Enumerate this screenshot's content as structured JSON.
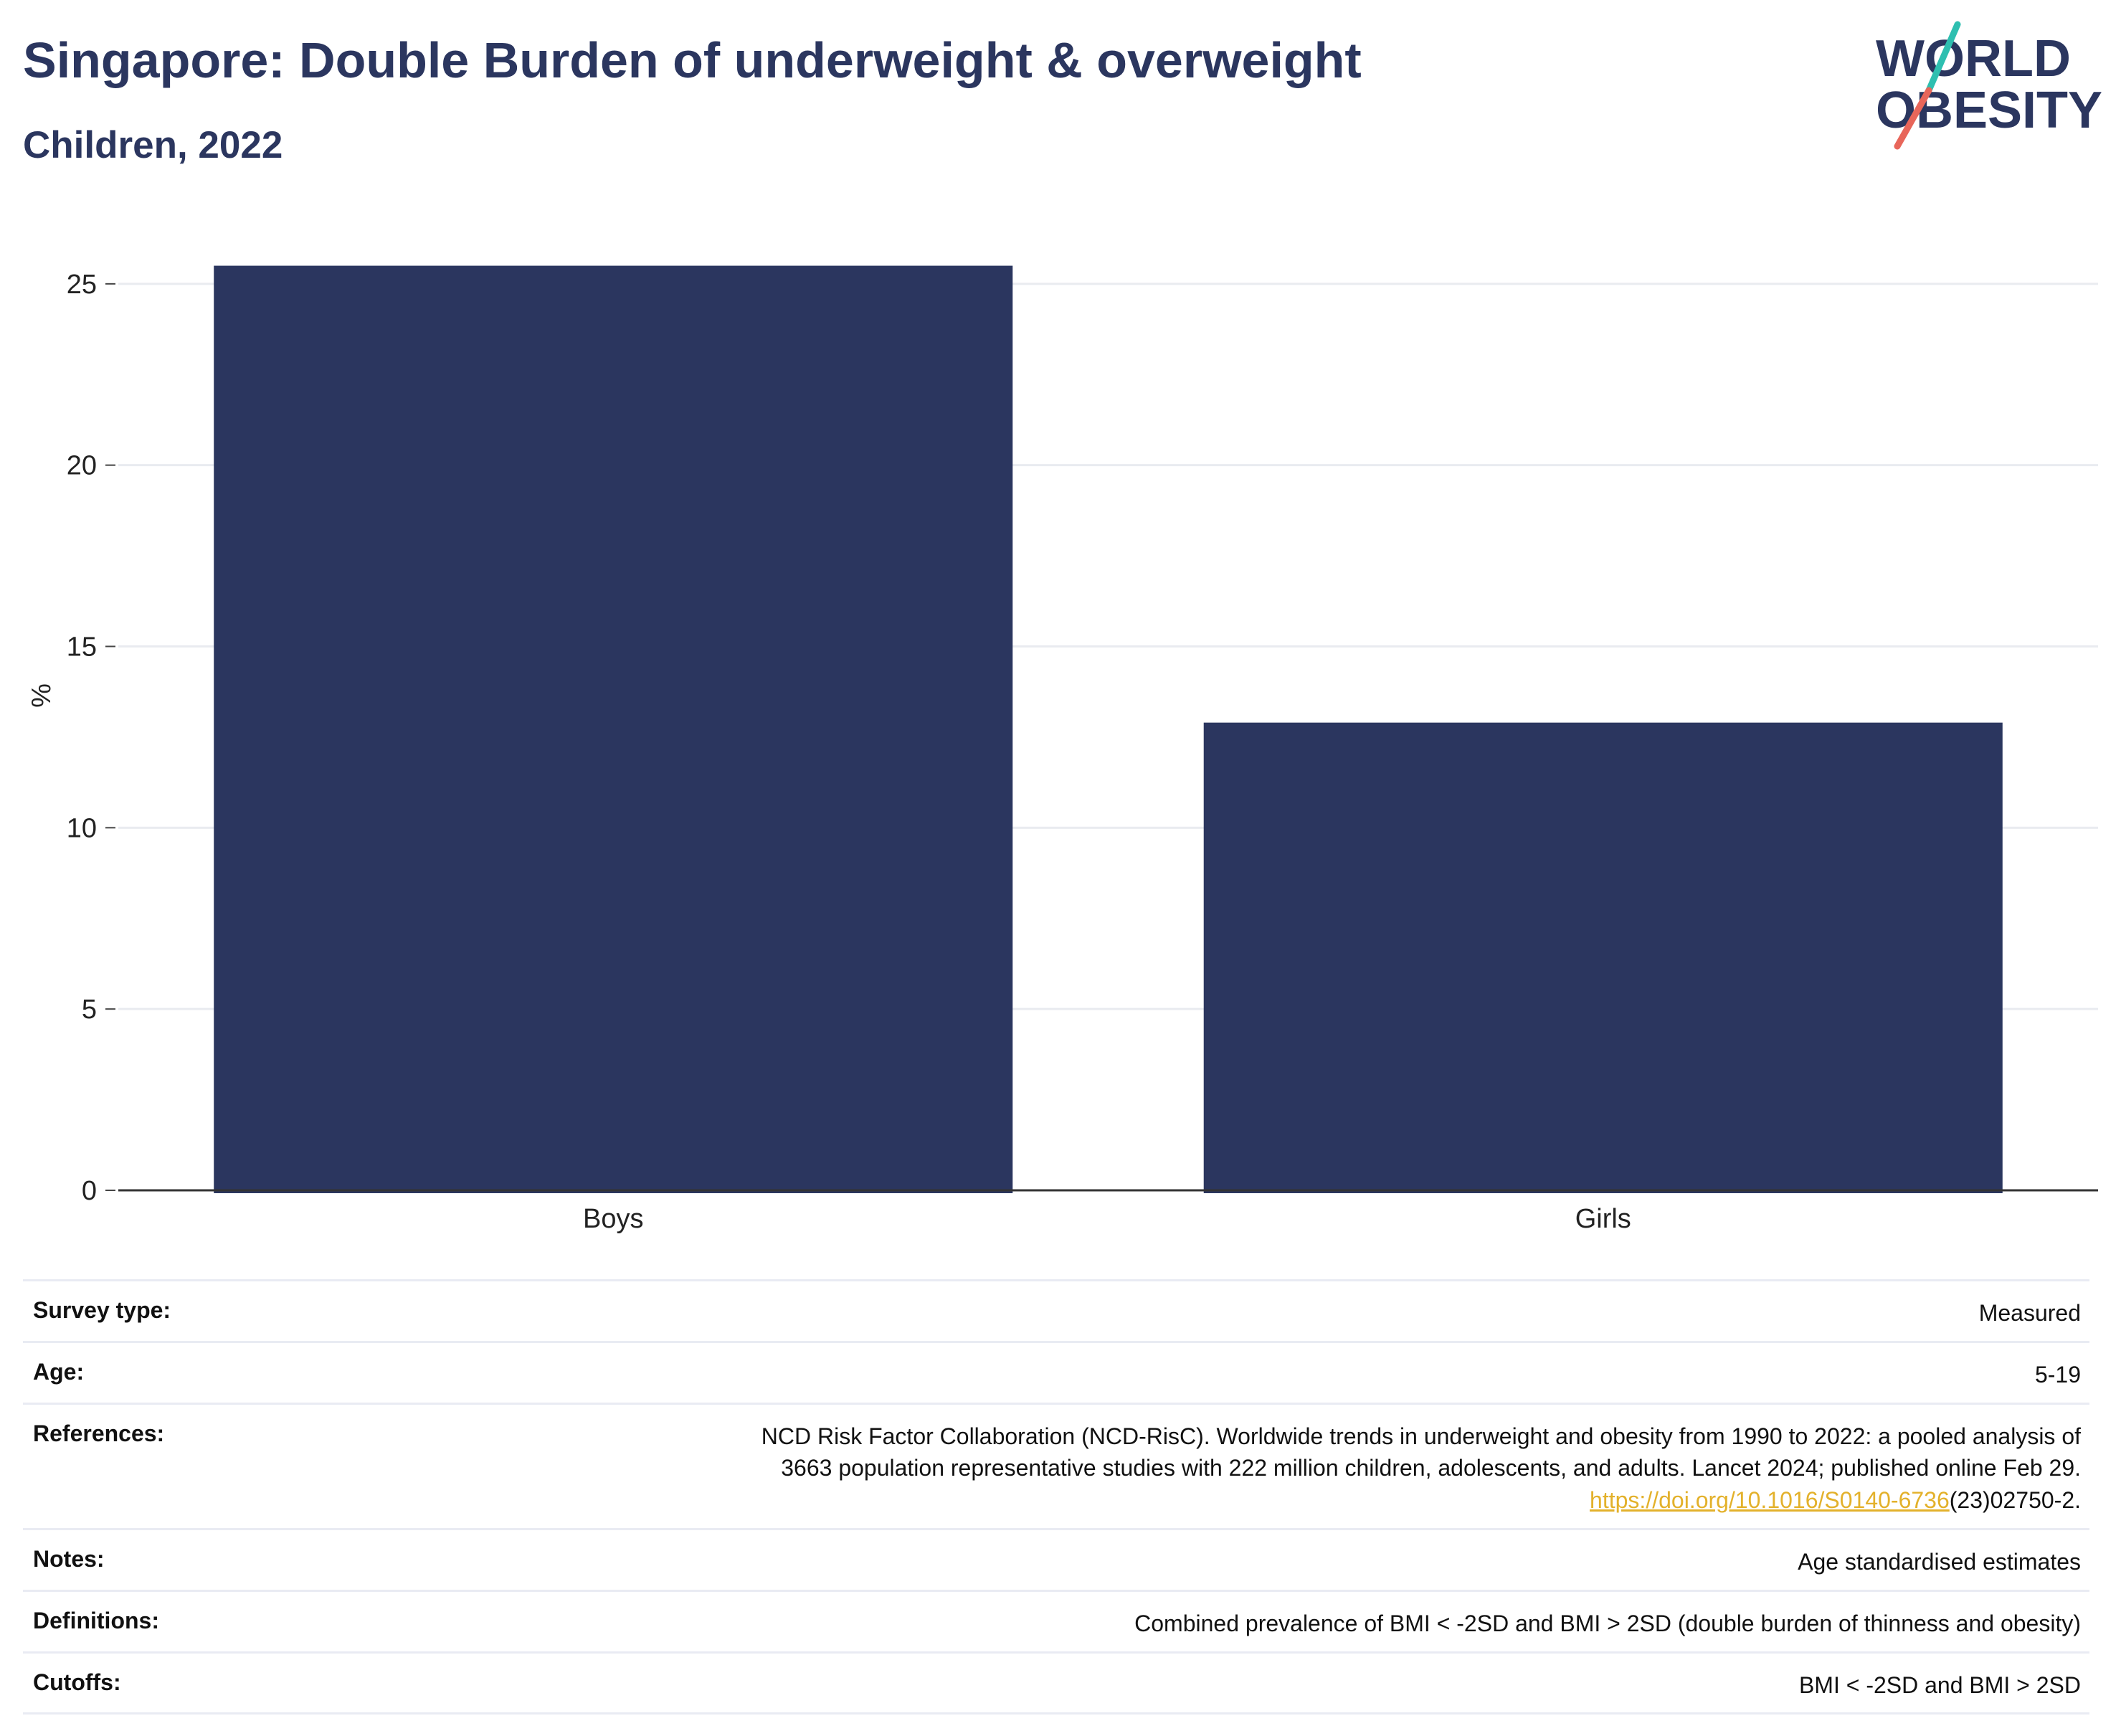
{
  "header": {
    "title": "Singapore: Double Burden of underweight & overweight",
    "subtitle": "Children, 2022"
  },
  "logo": {
    "line1": "WORLD",
    "line2": "OBESITY",
    "colors": {
      "text": "#2b365f",
      "slash_top": "#2ebfb0",
      "slash_bottom": "#e8665a"
    }
  },
  "chart_data": {
    "type": "bar",
    "categories": [
      "Boys",
      "Girls"
    ],
    "values": [
      25.5,
      12.9
    ],
    "title": "Singapore: Double Burden of underweight & overweight",
    "subtitle": "Children, 2022",
    "xlabel": "",
    "ylabel": "%",
    "ylim": [
      0,
      26.5
    ],
    "yticks": [
      0,
      5,
      10,
      15,
      20,
      25
    ],
    "grid": true,
    "legend": "none",
    "bar_color": "#2b365f"
  },
  "info": {
    "rows": [
      {
        "label": "Survey type:",
        "value": "Measured"
      },
      {
        "label": "Age:",
        "value": "5-19"
      },
      {
        "label": "References:",
        "value_line1": "NCD Risk Factor Collaboration (NCD-RisC). Worldwide trends in underweight and obesity from 1990 to 2022: a pooled analysis of",
        "value_line2": "3663 population representative studies with 222 million children, adolescents, and adults. Lancet 2024; published online Feb 29.",
        "link_text": "https://doi.org/10.1016/S0140-6736",
        "link_suffix": "(23)02750-2."
      },
      {
        "label": "Notes:",
        "value": "Age standardised estimates"
      },
      {
        "label": "Definitions:",
        "value": "Combined prevalence of BMI < -2SD and BMI > 2SD (double burden of thinness and obesity)"
      },
      {
        "label": "Cutoffs:",
        "value": "BMI < -2SD and BMI > 2SD"
      }
    ]
  }
}
